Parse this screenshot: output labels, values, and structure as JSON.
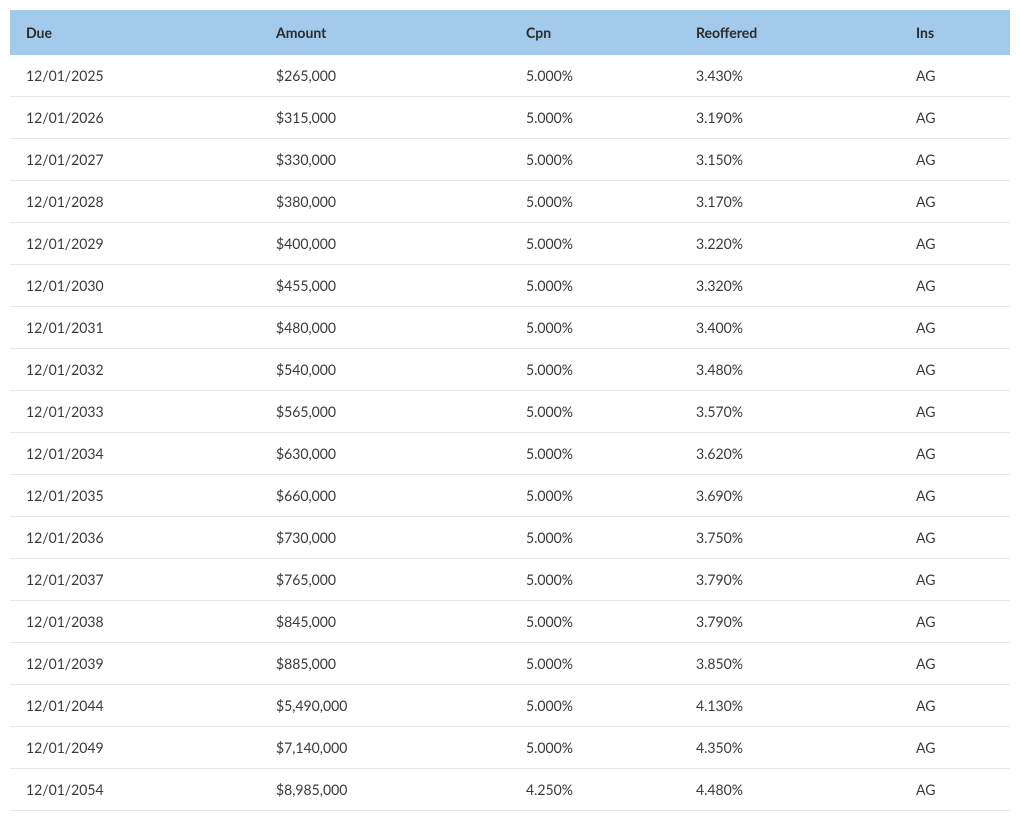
{
  "table": {
    "header_bg": "#a3c9eb",
    "row_border_color": "#e7e7e7",
    "text_color": "#333333",
    "font_size": 14,
    "columns": [
      {
        "key": "due",
        "label": "Due",
        "width": "26%"
      },
      {
        "key": "amount",
        "label": "Amount",
        "width": "25%"
      },
      {
        "key": "cpn",
        "label": "Cpn",
        "width": "17%"
      },
      {
        "key": "reoffered",
        "label": "Reoffered",
        "width": "22%"
      },
      {
        "key": "ins",
        "label": "Ins",
        "width": "10%"
      }
    ],
    "rows": [
      {
        "due": "12/01/2025",
        "amount": "$265,000",
        "cpn": "5.000%",
        "reoffered": "3.430%",
        "ins": "AG"
      },
      {
        "due": "12/01/2026",
        "amount": "$315,000",
        "cpn": "5.000%",
        "reoffered": "3.190%",
        "ins": "AG"
      },
      {
        "due": "12/01/2027",
        "amount": "$330,000",
        "cpn": "5.000%",
        "reoffered": "3.150%",
        "ins": "AG"
      },
      {
        "due": "12/01/2028",
        "amount": "$380,000",
        "cpn": "5.000%",
        "reoffered": "3.170%",
        "ins": "AG"
      },
      {
        "due": "12/01/2029",
        "amount": "$400,000",
        "cpn": "5.000%",
        "reoffered": "3.220%",
        "ins": "AG"
      },
      {
        "due": "12/01/2030",
        "amount": "$455,000",
        "cpn": "5.000%",
        "reoffered": "3.320%",
        "ins": "AG"
      },
      {
        "due": "12/01/2031",
        "amount": "$480,000",
        "cpn": "5.000%",
        "reoffered": "3.400%",
        "ins": "AG"
      },
      {
        "due": "12/01/2032",
        "amount": "$540,000",
        "cpn": "5.000%",
        "reoffered": "3.480%",
        "ins": "AG"
      },
      {
        "due": "12/01/2033",
        "amount": "$565,000",
        "cpn": "5.000%",
        "reoffered": "3.570%",
        "ins": "AG"
      },
      {
        "due": "12/01/2034",
        "amount": "$630,000",
        "cpn": "5.000%",
        "reoffered": "3.620%",
        "ins": "AG"
      },
      {
        "due": "12/01/2035",
        "amount": "$660,000",
        "cpn": "5.000%",
        "reoffered": "3.690%",
        "ins": "AG"
      },
      {
        "due": "12/01/2036",
        "amount": "$730,000",
        "cpn": "5.000%",
        "reoffered": "3.750%",
        "ins": "AG"
      },
      {
        "due": "12/01/2037",
        "amount": "$765,000",
        "cpn": "5.000%",
        "reoffered": "3.790%",
        "ins": "AG"
      },
      {
        "due": "12/01/2038",
        "amount": "$845,000",
        "cpn": "5.000%",
        "reoffered": "3.790%",
        "ins": "AG"
      },
      {
        "due": "12/01/2039",
        "amount": "$885,000",
        "cpn": "5.000%",
        "reoffered": "3.850%",
        "ins": "AG"
      },
      {
        "due": "12/01/2044",
        "amount": "$5,490,000",
        "cpn": "5.000%",
        "reoffered": "4.130%",
        "ins": "AG"
      },
      {
        "due": "12/01/2049",
        "amount": "$7,140,000",
        "cpn": "5.000%",
        "reoffered": "4.350%",
        "ins": "AG"
      },
      {
        "due": "12/01/2054",
        "amount": "$8,985,000",
        "cpn": "4.250%",
        "reoffered": "4.480%",
        "ins": "AG"
      }
    ]
  }
}
